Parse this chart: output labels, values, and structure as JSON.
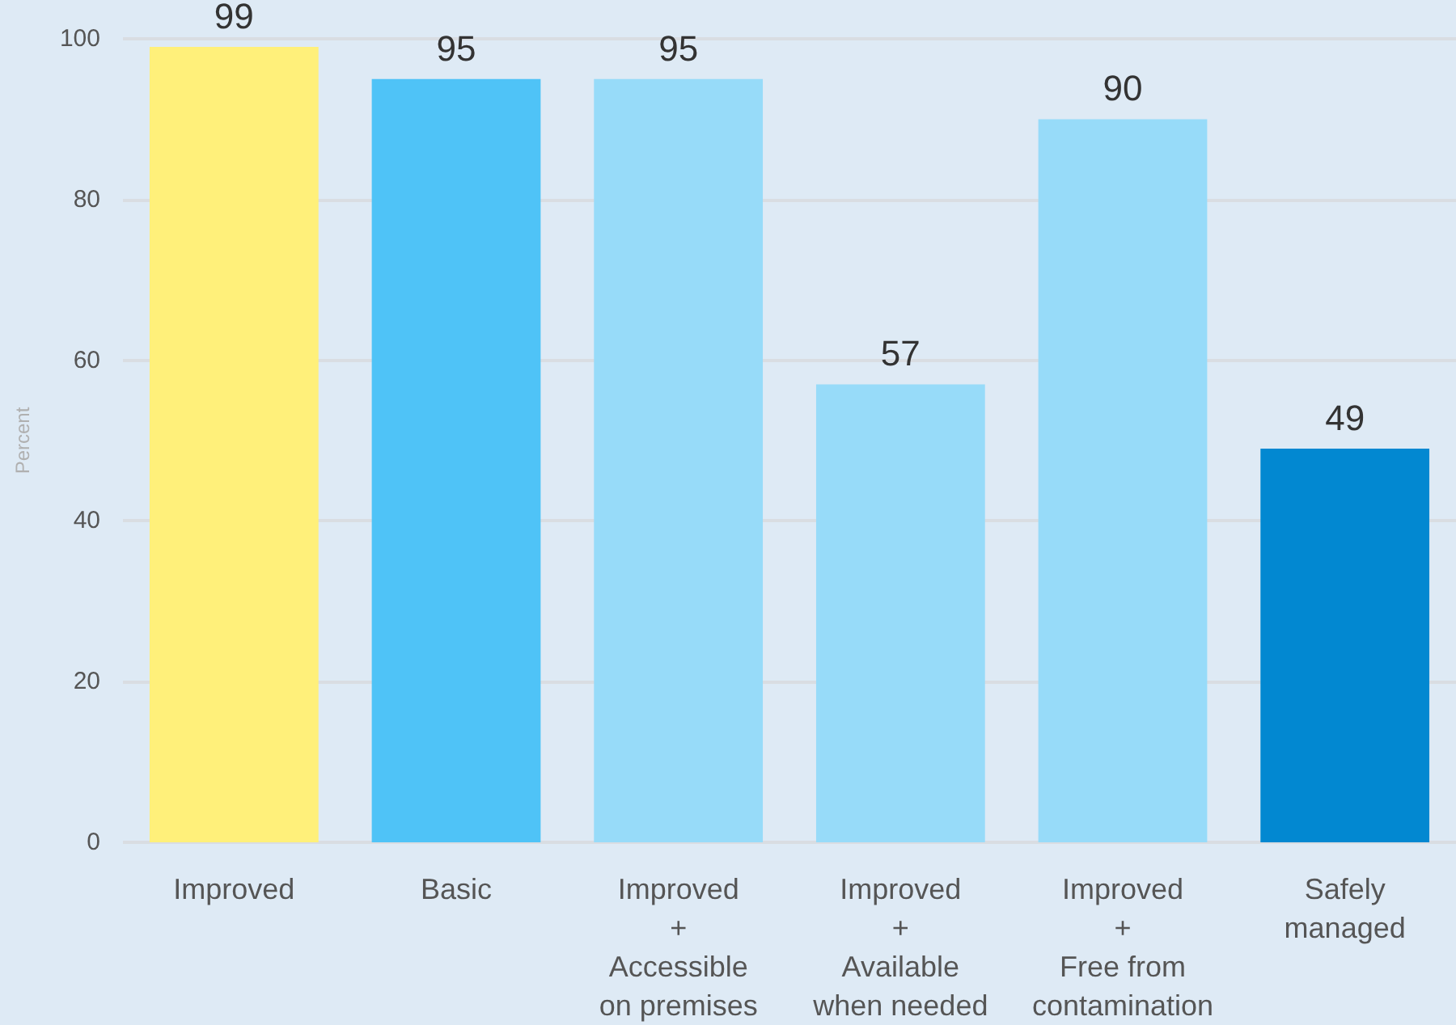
{
  "chart_data": {
    "type": "bar",
    "ylabel": "Percent",
    "categories": [
      "Improved",
      "Basic",
      "Improved\n+\nAccessible\non premises",
      "Improved\n+\nAvailable\nwhen needed",
      "Improved\n+\nFree from\ncontamination",
      "Safely\nmanaged"
    ],
    "values": [
      99,
      95,
      95,
      57,
      90,
      49
    ],
    "colors": [
      "#fff07a",
      "#4fc3f7",
      "#97dbf9",
      "#97dbf9",
      "#97dbf9",
      "#0288d1"
    ],
    "ylim": [
      0,
      100
    ],
    "yticks": [
      0,
      20,
      40,
      60,
      80,
      100
    ],
    "grid": "y",
    "data_labels": true
  }
}
